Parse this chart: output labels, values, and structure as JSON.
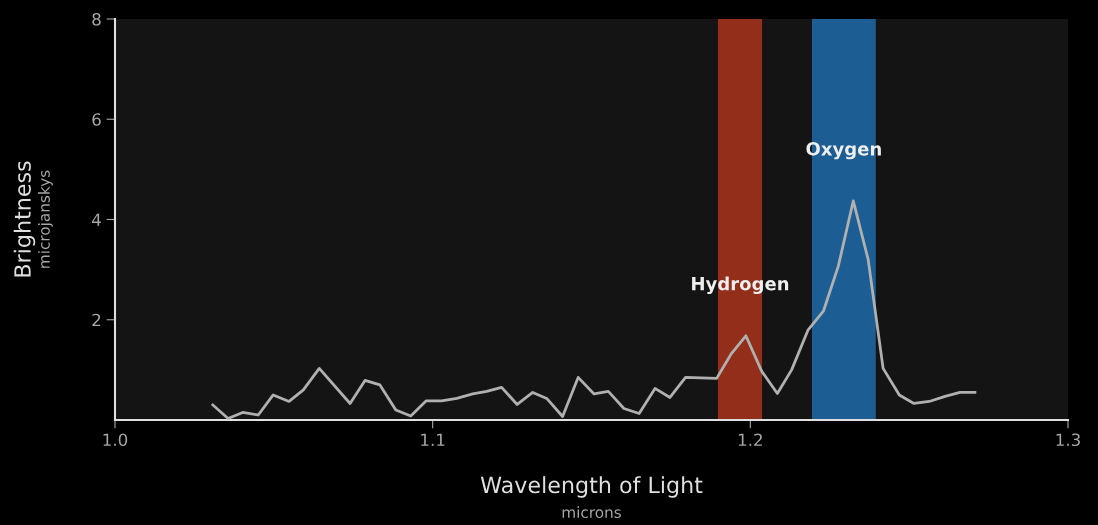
{
  "chart_data": {
    "type": "line",
    "xlabel": "Wavelength of Light\nmicrons",
    "ylabel": "Brightness\nmicrojanskys",
    "xlim": [
      1.0,
      1.3
    ],
    "xticks": [
      {
        "value": 1.0,
        "label": "1.0"
      },
      1.1,
      1.2,
      {
        "value": 1.3,
        "label": "1.3"
      }
    ],
    "ylim": [
      0,
      8
    ],
    "yticks": [
      2,
      4,
      6,
      8
    ],
    "grid": false,
    "marker": "none",
    "line_style": "solid",
    "series": [
      {
        "color": "#b0b0b0",
        "x": [
          1.0308,
          1.0356,
          1.0402,
          1.0451,
          1.0498,
          1.0548,
          1.0593,
          1.0643,
          1.074,
          1.0787,
          1.0834,
          1.0884,
          1.0931,
          1.0979,
          1.1028,
          1.1076,
          1.1126,
          1.117,
          1.1217,
          1.1266,
          1.1315,
          1.1359,
          1.1409,
          1.1458,
          1.1508,
          1.1553,
          1.1602,
          1.165,
          1.17,
          1.1747,
          1.1796,
          1.1894,
          1.1941,
          1.1986,
          1.2036,
          1.2085,
          1.213,
          1.2182,
          1.223,
          1.2277,
          1.2324,
          1.2371,
          1.2418,
          1.2469,
          1.2515,
          1.2563,
          1.2613,
          1.266,
          1.2707
        ],
        "values": [
          0.3,
          0.03,
          0.15,
          0.1,
          0.5,
          0.37,
          0.6,
          1.03,
          0.33,
          0.79,
          0.7,
          0.2,
          0.08,
          0.38,
          0.38,
          0.43,
          0.52,
          0.57,
          0.65,
          0.31,
          0.55,
          0.43,
          0.07,
          0.85,
          0.52,
          0.57,
          0.23,
          0.13,
          0.63,
          0.45,
          0.85,
          0.83,
          1.33,
          1.68,
          0.97,
          0.53,
          1.0,
          1.8,
          2.17,
          3.07,
          4.37,
          3.2,
          1.03,
          0.5,
          0.33,
          0.37,
          0.47,
          0.55,
          0.55
        ]
      }
    ],
    "bands": [
      {
        "axis": "x",
        "from": 1.1898,
        "to": 1.2037,
        "label": "Hydrogen",
        "color": "#e8401f"
      },
      {
        "axis": "x",
        "from": 1.2194,
        "to": 1.2395,
        "label": "Oxygen",
        "color": "#2190e8"
      }
    ]
  }
}
